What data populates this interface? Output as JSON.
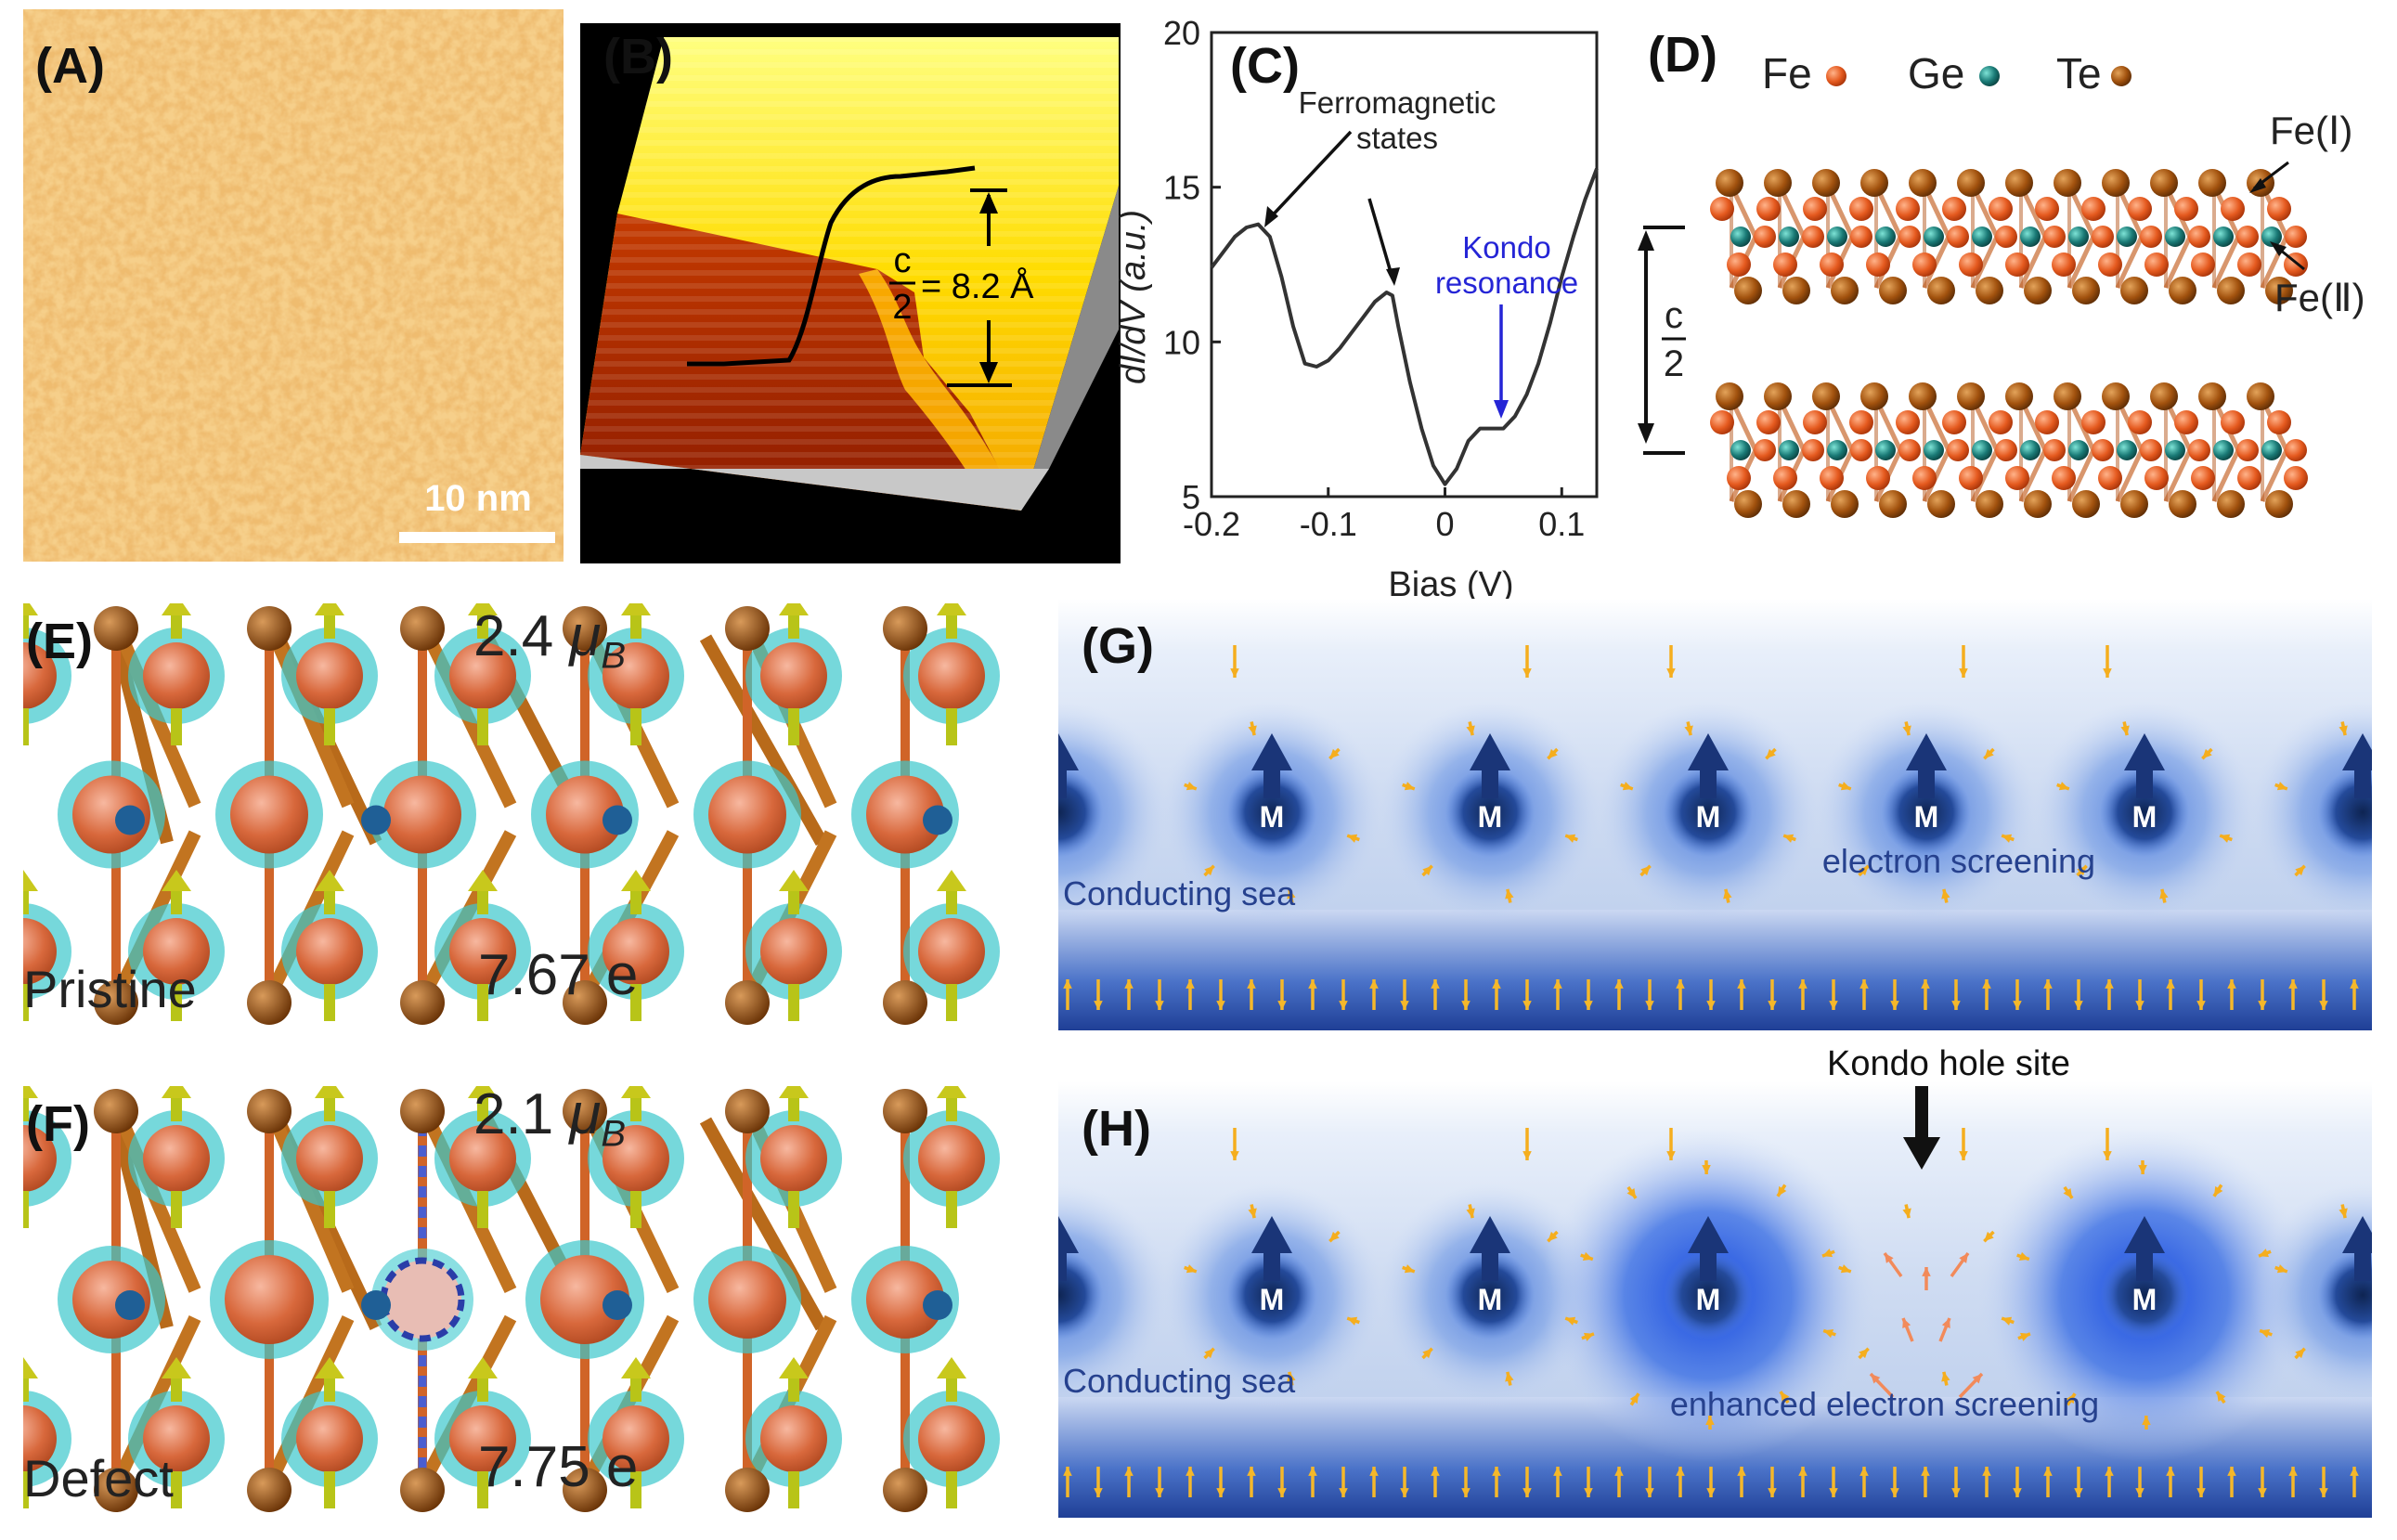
{
  "panels": {
    "A": {
      "label": "(A)",
      "scalebar": "10 nm"
    },
    "B": {
      "label": "(B)",
      "step_fraction_num": "c",
      "step_fraction_den": "2",
      "step_value": "= 8.2 Å"
    },
    "C": {
      "label": "(C)",
      "annotation_ferro_1": "Ferromagnetic",
      "annotation_ferro_2": "states",
      "annotation_kondo_1": "Kondo",
      "annotation_kondo_2": "resonance"
    },
    "D": {
      "label": "(D)",
      "legend": [
        "Fe",
        "Ge",
        "Te"
      ],
      "site_1": "Fe(Ⅰ)",
      "site_2": "Fe(Ⅱ)",
      "spacing_num": "c",
      "spacing_den": "2"
    },
    "E": {
      "label": "(E)",
      "moment": "2.4 μB",
      "moment_sym": "2.4 ",
      "moment_mu": "μ",
      "moment_sub": "B",
      "state": "Pristine",
      "charge": "7.67 e"
    },
    "F": {
      "label": "(F)",
      "moment_sym": "2.1 ",
      "moment_mu": "μ",
      "moment_sub": "B",
      "state": "Defect",
      "charge": "7.75 e"
    },
    "G": {
      "label": "(G)",
      "moment_label": "M",
      "screening": "electron screening",
      "sea": "Conducting sea"
    },
    "H": {
      "label": "(H)",
      "moment_label": "M",
      "screening": "enhanced electron screening",
      "sea": "Conducting sea",
      "hole": "Kondo hole site"
    }
  },
  "colors": {
    "fe": "#d95a22",
    "ge": "#1a7a76",
    "te": "#a2520e",
    "blue": "#2040d0",
    "arrow": "#f5b82a"
  },
  "chart_data": {
    "type": "line",
    "title": "",
    "xlabel": "Bias (V)",
    "ylabel": "dI/dV (a.u.)",
    "xlim": [
      -0.2,
      0.13
    ],
    "ylim": [
      5,
      20
    ],
    "xticks": [
      -0.2,
      -0.1,
      0,
      0.1
    ],
    "xtick_labels": [
      "-0.2",
      "-0.1",
      "0",
      "0.1"
    ],
    "yticks": [
      5,
      10,
      15,
      20
    ],
    "ytick_labels": [
      "5",
      "10",
      "15",
      "20"
    ],
    "series": [
      {
        "x": [
          -0.2,
          -0.19,
          -0.18,
          -0.17,
          -0.16,
          -0.15,
          -0.14,
          -0.13,
          -0.12,
          -0.11,
          -0.1,
          -0.09,
          -0.08,
          -0.07,
          -0.06,
          -0.05,
          -0.045,
          -0.04,
          -0.03,
          -0.02,
          -0.01,
          0,
          0.01,
          0.02,
          0.03,
          0.04,
          0.05,
          0.06,
          0.07,
          0.08,
          0.09,
          0.1,
          0.11,
          0.12,
          0.13
        ],
        "y": [
          12.4,
          12.9,
          13.4,
          13.7,
          13.8,
          13.4,
          12.1,
          10.5,
          9.3,
          9.2,
          9.4,
          9.8,
          10.3,
          10.8,
          11.3,
          11.6,
          11.5,
          10.5,
          8.7,
          7.2,
          6.0,
          5.4,
          5.9,
          6.8,
          7.2,
          7.2,
          7.2,
          7.6,
          8.3,
          9.3,
          10.6,
          12.1,
          13.4,
          14.6,
          15.6
        ]
      }
    ],
    "annotations": [
      "Ferromagnetic states",
      "Kondo resonance"
    ]
  }
}
